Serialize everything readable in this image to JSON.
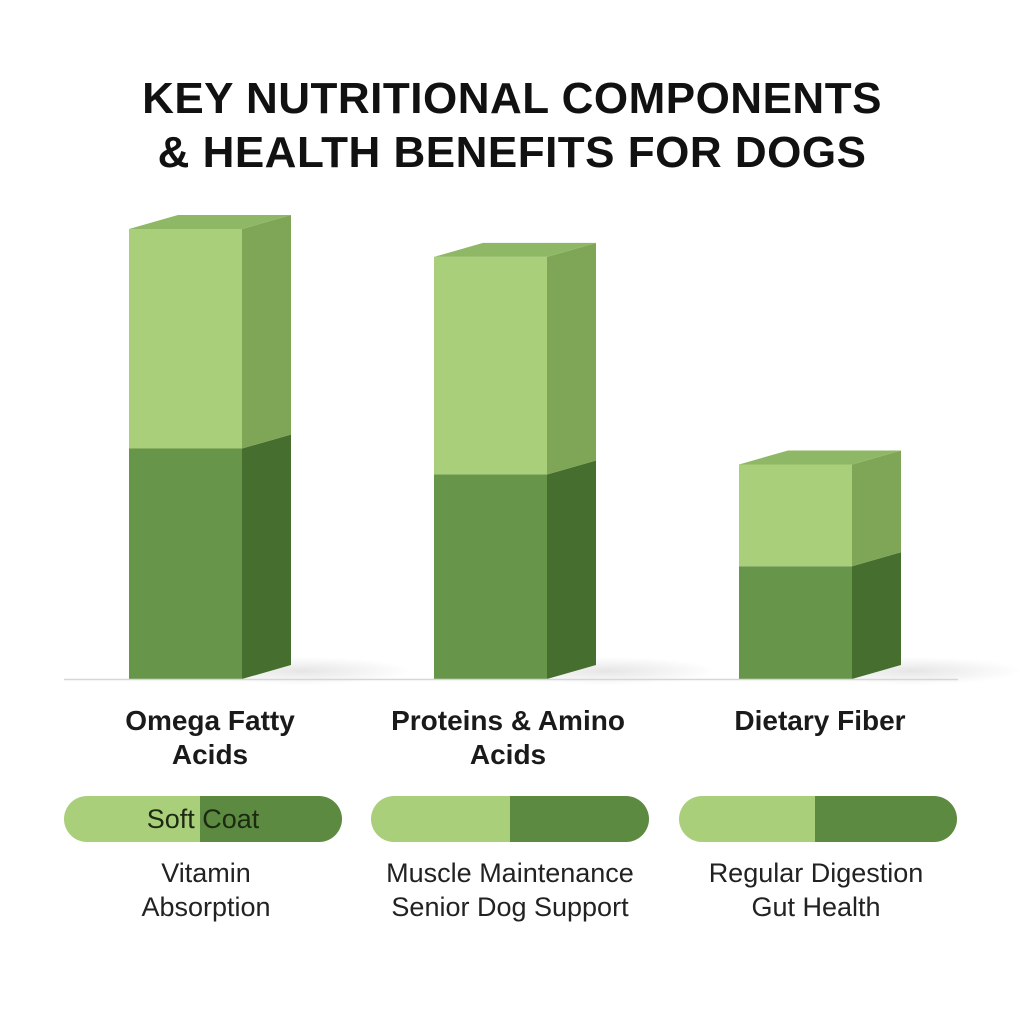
{
  "chart_data": {
    "type": "bar",
    "title_lines": [
      "KEY NUTRITIONAL COMPONENTS",
      "& HEALTH BENEFITS FOR DOGS"
    ],
    "categories": [
      "Omega Fatty Acids",
      "Proteins & Amino Acids",
      "Dietary Fiber"
    ],
    "stacked": true,
    "series": [
      {
        "values": [
          231,
          205,
          113
        ]
      },
      {
        "values": [
          220,
          218,
          102
        ]
      }
    ],
    "ylim": [
      0,
      460
    ],
    "grid": false,
    "legend": "none"
  },
  "labels": {
    "categories": [
      {
        "line1": "Omega Fatty",
        "line2": "Acids"
      },
      {
        "line1": "Proteins & Amino",
        "line2": "Acids"
      },
      {
        "line1": "Dietary Fiber",
        "line2": ""
      }
    ],
    "pills": [
      {
        "text": "Soft Coat",
        "split": 0.49
      },
      {
        "text": "",
        "split": 0.5
      },
      {
        "text": "",
        "split": 0.49
      }
    ],
    "benefits": [
      {
        "line1": "Vitamin",
        "line2": "Absorption"
      },
      {
        "line1": "Muscle Maintenance",
        "line2": "Senior Dog Support"
      },
      {
        "line1": "Regular Digestion",
        "line2": "Gut Health"
      }
    ]
  },
  "colors": {
    "light_front": "#a9cf7b",
    "light_side": "#7fa557",
    "light_top": "#8fb866",
    "dark_front": "#67964a",
    "dark_side": "#466f2f",
    "dark_top": "#557e3a",
    "baseline": "#d6d6d6"
  }
}
